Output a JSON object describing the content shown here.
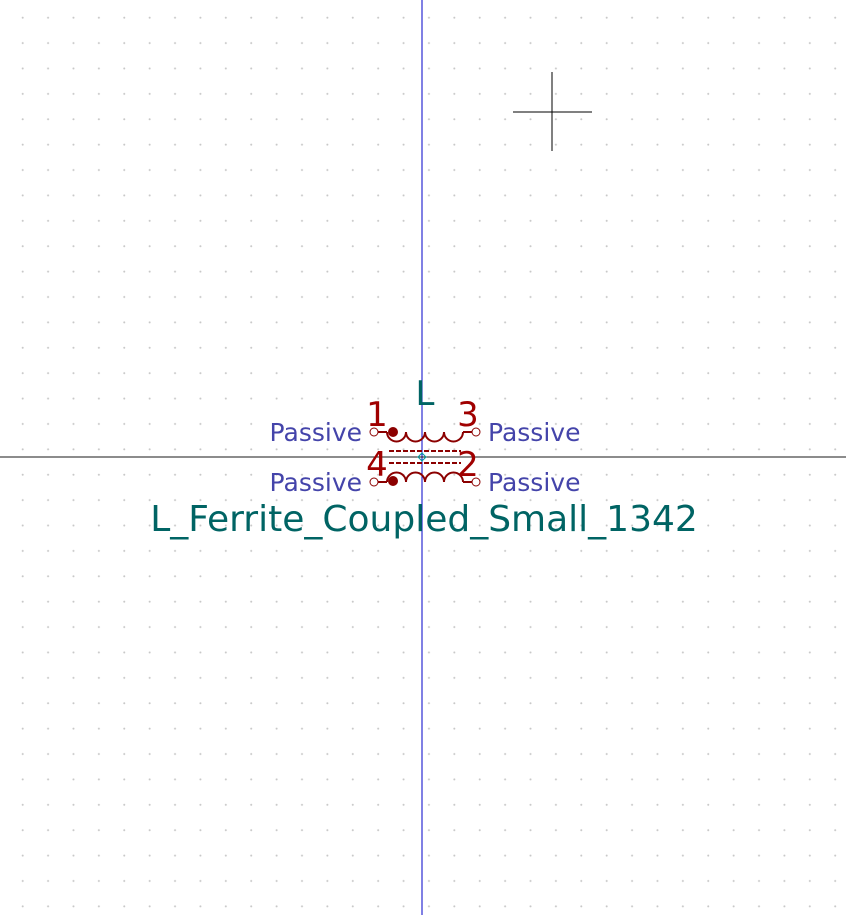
{
  "symbol": {
    "reference": "L",
    "value": "L_Ferrite_Coupled_Small_1342"
  },
  "pins": [
    {
      "number": "1",
      "type": "Passive"
    },
    {
      "number": "3",
      "type": "Passive"
    },
    {
      "number": "4",
      "type": "Passive"
    },
    {
      "number": "2",
      "type": "Passive"
    }
  ],
  "colors": {
    "background": "#ffffff",
    "grid": "#c8c8c8",
    "axis_vertical": "#0000c8",
    "axis_horizontal": "#1a1a1a",
    "body": "#8b0000",
    "pin_number": "#a00000",
    "pin_type": "#4444aa",
    "field_text": "#006464",
    "cursor": "#000000",
    "anchor": "#00a0a0"
  }
}
